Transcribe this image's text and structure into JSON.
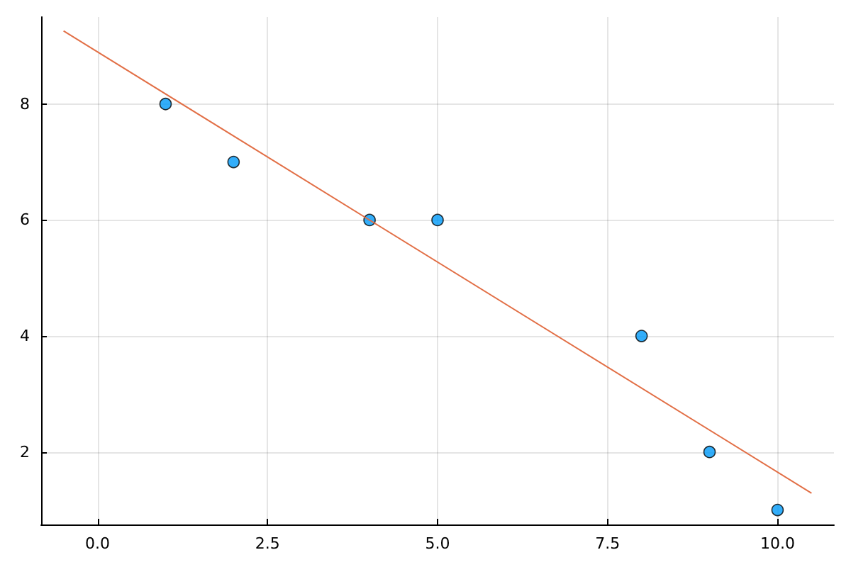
{
  "chart_data": {
    "type": "scatter",
    "grid": true,
    "xlim": [
      -0.83,
      10.83
    ],
    "ylim": [
      0.75,
      9.5
    ],
    "xticks": [
      {
        "value": 0,
        "label": "0.0"
      },
      {
        "value": 2.5,
        "label": "2.5"
      },
      {
        "value": 5,
        "label": "5.0"
      },
      {
        "value": 7.5,
        "label": "7.5"
      },
      {
        "value": 10,
        "label": "10.0"
      }
    ],
    "yticks": [
      2,
      4,
      6,
      8
    ],
    "series": [
      {
        "marker": "circle",
        "color": "#009af9",
        "x": [
          1,
          2,
          4,
          5,
          8,
          9,
          10
        ],
        "values": [
          8,
          7,
          6,
          6,
          4,
          2,
          1
        ]
      },
      {
        "type": "line",
        "marker": "none",
        "color": "#e26f46",
        "line_style": "solid",
        "x": [
          -0.5,
          10.5
        ],
        "values": [
          9.26,
          1.29
        ]
      }
    ]
  }
}
